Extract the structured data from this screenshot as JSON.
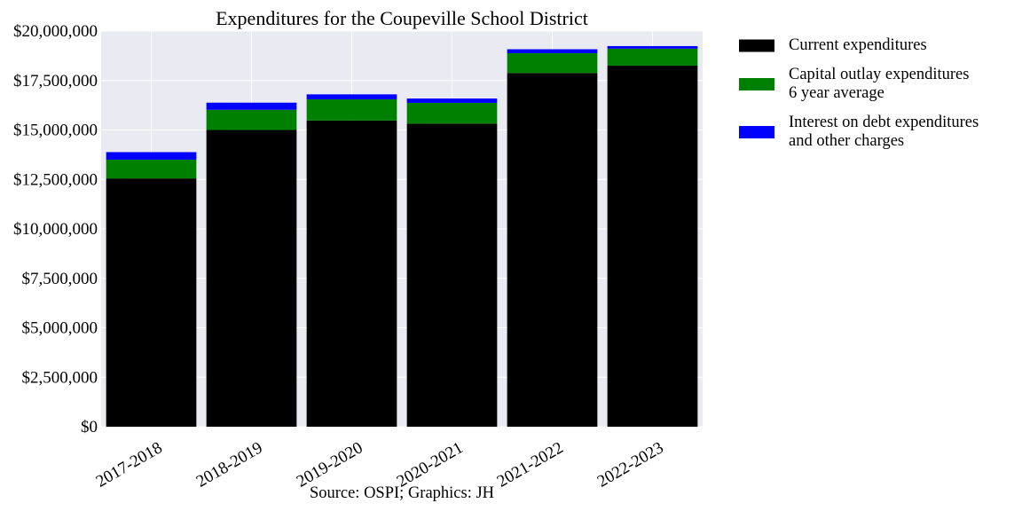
{
  "chart_data": {
    "type": "bar",
    "stacked": true,
    "title": "Expenditures for the Coupeville School District",
    "xlabel": "Source: OSPI; Graphics: JH",
    "ylabel": "",
    "ylim": [
      0,
      20000000
    ],
    "y_ticks": [
      0,
      2500000,
      5000000,
      7500000,
      10000000,
      12500000,
      15000000,
      17500000,
      20000000
    ],
    "y_tick_labels": [
      "$0",
      "$2,500,000",
      "$5,000,000",
      "$7,500,000",
      "$10,000,000",
      "$12,500,000",
      "$15,000,000",
      "$17,500,000",
      "$20,000,000"
    ],
    "categories": [
      "2017-2018",
      "2018-2019",
      "2019-2020",
      "2020-2021",
      "2021-2022",
      "2022-2023"
    ],
    "series": [
      {
        "name": "Current expenditures",
        "color": "#000000",
        "values": [
          12550000,
          15000000,
          15480000,
          15320000,
          17880000,
          18250000
        ]
      },
      {
        "name": "Capital outlay expenditures\n6 year average",
        "color": "#008000",
        "values": [
          950000,
          1020000,
          1070000,
          1050000,
          1000000,
          860000
        ]
      },
      {
        "name": "Interest on debt expenditures\nand other charges",
        "color": "#0000ff",
        "values": [
          380000,
          360000,
          250000,
          220000,
          200000,
          130000
        ]
      }
    ],
    "grid": true,
    "legend_position": "outside-top-right"
  }
}
